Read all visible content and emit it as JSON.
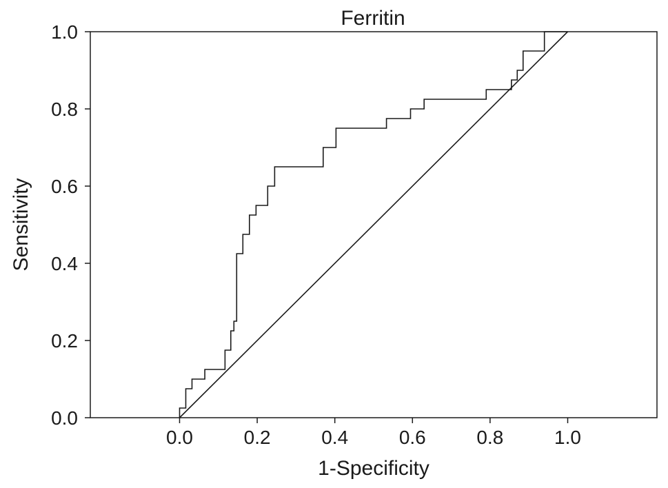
{
  "chart_data": {
    "type": "line",
    "title": "Ferritin",
    "xlabel": "1-Specificity",
    "ylabel": "Sensitivity",
    "xlim": [
      -0.23,
      1.23
    ],
    "ylim": [
      0.0,
      1.0
    ],
    "xticks": [
      0.0,
      0.2,
      0.4,
      0.6,
      0.8,
      1.0
    ],
    "xtick_labels": [
      "0.0",
      "0.2",
      "0.4",
      "0.6",
      "0.8",
      "1.0"
    ],
    "yticks": [
      0.0,
      0.2,
      0.4,
      0.6,
      0.8,
      1.0
    ],
    "ytick_labels": [
      "0.0",
      "0.2",
      "0.4",
      "0.6",
      "0.8",
      "1.0"
    ],
    "grid": false,
    "legend": false,
    "colors": {
      "roc": "#1a1a1a",
      "reference": "#1a1a1a",
      "frame": "#1a1a1a"
    },
    "series": [
      {
        "style": "step",
        "points": [
          [
            0.0,
            0.0
          ],
          [
            0.0,
            0.025
          ],
          [
            0.016,
            0.025
          ],
          [
            0.016,
            0.075
          ],
          [
            0.032,
            0.075
          ],
          [
            0.032,
            0.1
          ],
          [
            0.065,
            0.1
          ],
          [
            0.065,
            0.125
          ],
          [
            0.117,
            0.125
          ],
          [
            0.117,
            0.175
          ],
          [
            0.132,
            0.175
          ],
          [
            0.132,
            0.225
          ],
          [
            0.14,
            0.225
          ],
          [
            0.14,
            0.25
          ],
          [
            0.147,
            0.25
          ],
          [
            0.147,
            0.425
          ],
          [
            0.163,
            0.425
          ],
          [
            0.163,
            0.475
          ],
          [
            0.18,
            0.475
          ],
          [
            0.18,
            0.525
          ],
          [
            0.197,
            0.525
          ],
          [
            0.197,
            0.55
          ],
          [
            0.227,
            0.55
          ],
          [
            0.227,
            0.6
          ],
          [
            0.245,
            0.6
          ],
          [
            0.245,
            0.65
          ],
          [
            0.37,
            0.65
          ],
          [
            0.37,
            0.7
          ],
          [
            0.403,
            0.7
          ],
          [
            0.403,
            0.75
          ],
          [
            0.533,
            0.75
          ],
          [
            0.533,
            0.775
          ],
          [
            0.595,
            0.775
          ],
          [
            0.595,
            0.8
          ],
          [
            0.63,
            0.8
          ],
          [
            0.63,
            0.825
          ],
          [
            0.79,
            0.825
          ],
          [
            0.79,
            0.85
          ],
          [
            0.855,
            0.85
          ],
          [
            0.855,
            0.875
          ],
          [
            0.87,
            0.875
          ],
          [
            0.87,
            0.9
          ],
          [
            0.885,
            0.9
          ],
          [
            0.885,
            0.95
          ],
          [
            0.94,
            0.95
          ],
          [
            0.94,
            1.0
          ],
          [
            1.0,
            1.0
          ]
        ]
      },
      {
        "style": "line",
        "points": [
          [
            0.0,
            0.0
          ],
          [
            1.0,
            1.0
          ]
        ]
      }
    ]
  }
}
